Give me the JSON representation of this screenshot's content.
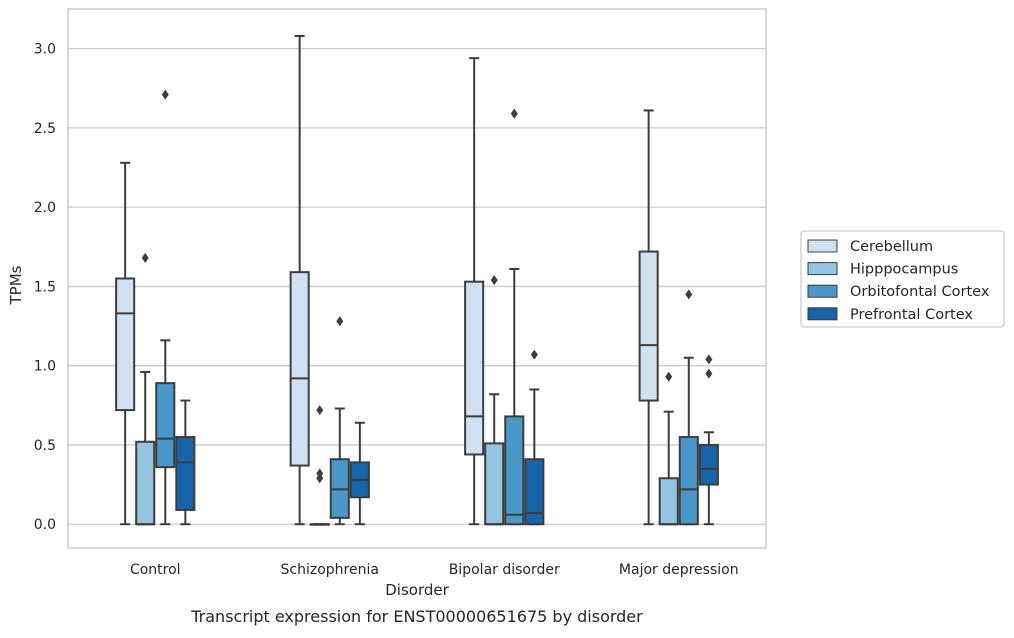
{
  "chart_data": {
    "type": "boxplot",
    "caption": "Transcript expression for ENST00000651675 by disorder",
    "xlabel": "Disorder",
    "ylabel": "TPMs",
    "ylim": [
      -0.15,
      3.25
    ],
    "yticks": [
      0.0,
      0.5,
      1.0,
      1.5,
      2.0,
      2.5,
      3.0
    ],
    "ytick_labels": [
      "0.0",
      "0.5",
      "1.0",
      "1.5",
      "2.0",
      "2.5",
      "3.0"
    ],
    "grid": "horizontal",
    "legend_position": "right",
    "categories": [
      "Control",
      "Schizophrenia",
      "Bipolar disorder",
      "Major depression"
    ],
    "series": [
      {
        "name": "Cerebellum",
        "color": "#d0e1f2",
        "boxes": [
          {
            "whislo": 0.0,
            "q1": 0.72,
            "med": 1.33,
            "q3": 1.55,
            "whishi": 2.28,
            "fliers": []
          },
          {
            "whislo": 0.0,
            "q1": 0.37,
            "med": 0.92,
            "q3": 1.59,
            "whishi": 3.08,
            "fliers": []
          },
          {
            "whislo": 0.0,
            "q1": 0.44,
            "med": 0.68,
            "q3": 1.53,
            "whishi": 2.94,
            "fliers": []
          },
          {
            "whislo": 0.0,
            "q1": 0.78,
            "med": 1.13,
            "q3": 1.72,
            "whishi": 2.61,
            "fliers": []
          }
        ]
      },
      {
        "name": "Hipppocampus",
        "color": "#94c4df",
        "boxes": [
          {
            "whislo": 0.0,
            "q1": 0.0,
            "med": 0.0,
            "q3": 0.52,
            "whishi": 0.96,
            "fliers": [
              1.68
            ]
          },
          {
            "whislo": 0.0,
            "q1": 0.0,
            "med": 0.0,
            "q3": 0.0,
            "whishi": 0.0,
            "fliers": [
              0.72,
              0.32,
              0.29
            ]
          },
          {
            "whislo": 0.0,
            "q1": 0.0,
            "med": 0.0,
            "q3": 0.51,
            "whishi": 0.82,
            "fliers": [
              1.54
            ]
          },
          {
            "whislo": 0.0,
            "q1": 0.0,
            "med": 0.0,
            "q3": 0.29,
            "whishi": 0.71,
            "fliers": [
              0.93
            ]
          }
        ]
      },
      {
        "name": "Orbitofontal Cortex",
        "color": "#4a98c9",
        "boxes": [
          {
            "whislo": 0.0,
            "q1": 0.36,
            "med": 0.54,
            "q3": 0.89,
            "whishi": 1.16,
            "fliers": [
              2.71
            ]
          },
          {
            "whislo": 0.0,
            "q1": 0.04,
            "med": 0.22,
            "q3": 0.41,
            "whishi": 0.73,
            "fliers": [
              1.28
            ]
          },
          {
            "whislo": 0.0,
            "q1": 0.0,
            "med": 0.06,
            "q3": 0.68,
            "whishi": 1.61,
            "fliers": [
              2.59
            ]
          },
          {
            "whislo": 0.0,
            "q1": 0.0,
            "med": 0.22,
            "q3": 0.55,
            "whishi": 1.05,
            "fliers": [
              1.45
            ]
          }
        ]
      },
      {
        "name": "Prefrontal Cortex",
        "color": "#1764ab",
        "boxes": [
          {
            "whislo": 0.0,
            "q1": 0.09,
            "med": 0.39,
            "q3": 0.55,
            "whishi": 0.78,
            "fliers": []
          },
          {
            "whislo": 0.0,
            "q1": 0.17,
            "med": 0.28,
            "q3": 0.39,
            "whishi": 0.64,
            "fliers": []
          },
          {
            "whislo": 0.0,
            "q1": 0.0,
            "med": 0.07,
            "q3": 0.41,
            "whishi": 0.85,
            "fliers": [
              1.07
            ]
          },
          {
            "whislo": 0.0,
            "q1": 0.25,
            "med": 0.35,
            "q3": 0.5,
            "whishi": 0.58,
            "fliers": [
              1.04,
              0.95
            ]
          }
        ]
      }
    ]
  },
  "style": {
    "line_color": "#3d3d3d",
    "grid_color": "#cccccc",
    "frame_color": "#cccccc"
  }
}
